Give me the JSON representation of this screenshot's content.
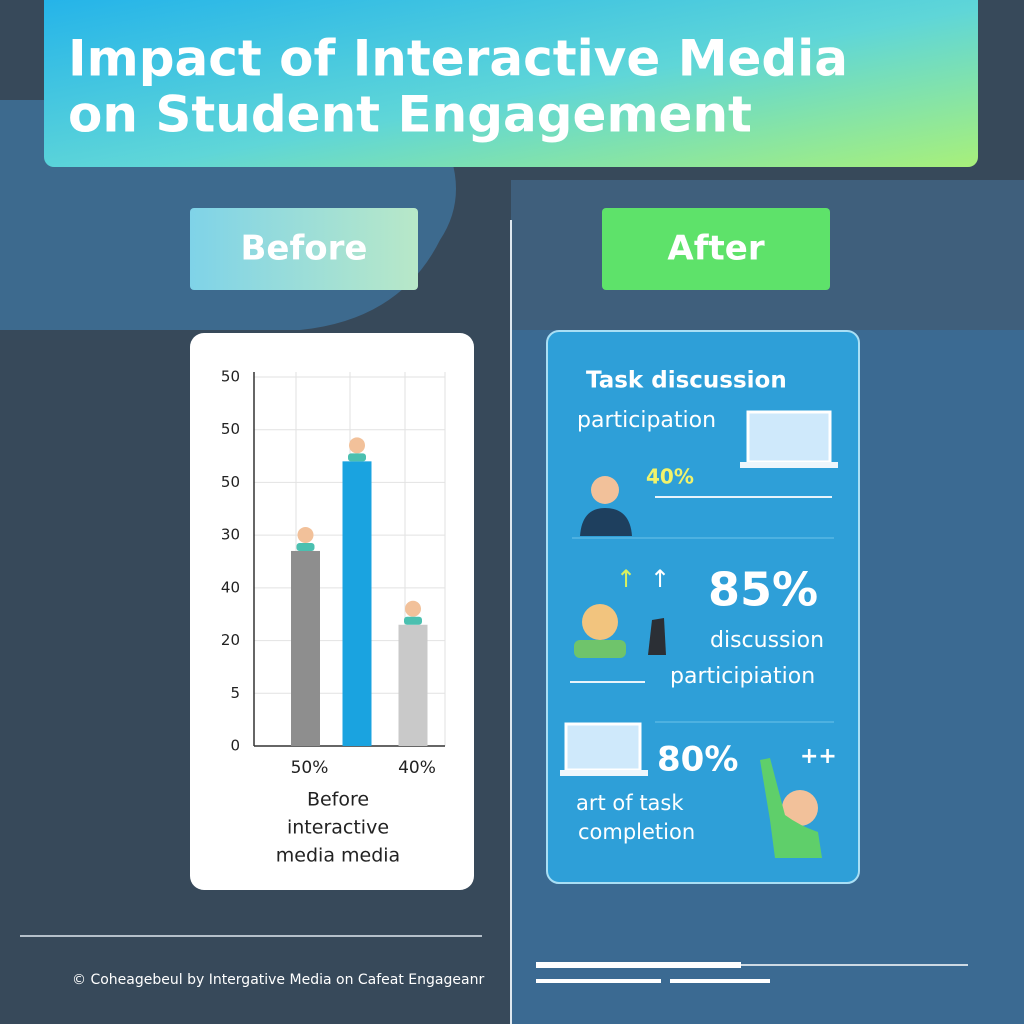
{
  "header": {
    "title_line1": "Impact of Interactive Media",
    "title_line2": "on Student Engagement"
  },
  "labels": {
    "before": "Before",
    "after": "After"
  },
  "chart_data": {
    "type": "bar",
    "categories": [
      "50%",
      null,
      "40%"
    ],
    "values": [
      3.7,
      5.4,
      2.3
    ],
    "colors": [
      "#8e8e8e",
      "#1aa3e0",
      "#c9c9c9"
    ],
    "x_label_lines": [
      "Before",
      "interactive",
      "media media"
    ],
    "ylim": [
      0,
      7
    ],
    "yticks": [
      {
        "value": 0,
        "label": "0"
      },
      {
        "value": 1,
        "label": "5"
      },
      {
        "value": 2,
        "label": "20"
      },
      {
        "value": 3,
        "label": "40"
      },
      {
        "value": 4,
        "label": "30"
      },
      {
        "value": 5,
        "label": "50"
      },
      {
        "value": 6,
        "label": "50"
      },
      {
        "value": 7,
        "label": "50"
      }
    ],
    "grid": true
  },
  "after_panel": {
    "heading": "Task discussion",
    "subheading": "participation",
    "stat1": "40%",
    "stat2": "85%",
    "stat2_line1": "discussion",
    "stat2_line2": "participiation",
    "stat3": "80%",
    "plus": "++",
    "stat3_line1": "art of task",
    "stat3_line2": "completion"
  },
  "footer": {
    "text": "© Coheagebeul by Intergative Media on Cafeat Engageanr"
  }
}
